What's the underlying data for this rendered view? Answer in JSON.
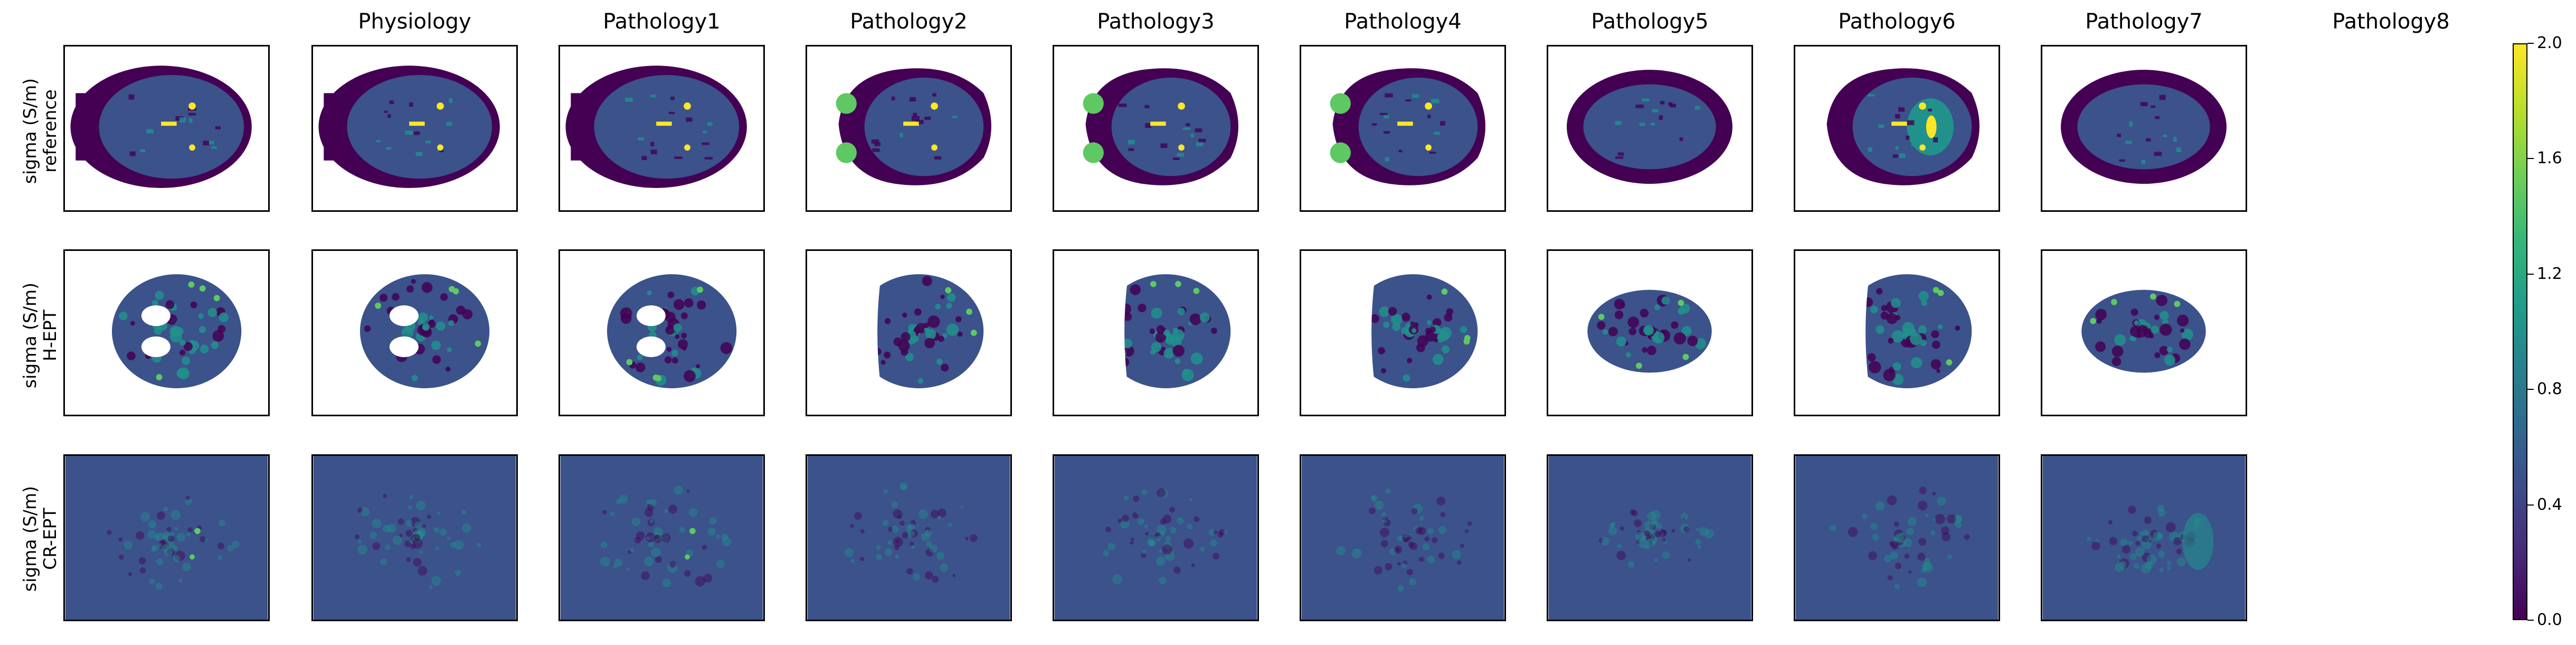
{
  "columns": [
    "Physiology",
    "Pathology1",
    "Pathology2",
    "Pathology3",
    "Pathology4",
    "Pathology5",
    "Pathology6",
    "Pathology7",
    "Pathology8"
  ],
  "rows": [
    {
      "label_line1": "sigma (S/m)",
      "label_line2": "reference"
    },
    {
      "label_line1": "sigma (S/m)",
      "label_line2": "H-EPT"
    },
    {
      "label_line1": "sigma (S/m)",
      "label_line2": "CR-EPT"
    }
  ],
  "colorbar": {
    "colormap": "viridis",
    "ticks": [
      "0.0",
      "0.4",
      "0.8",
      "1.2",
      "1.6",
      "2.0"
    ],
    "range": [
      0.0,
      2.0
    ]
  },
  "colors": {
    "dark_purple": "#440154",
    "background_blue": "#3b528b",
    "teal": "#21918c",
    "green": "#5ec962",
    "yellow": "#fde725"
  }
}
